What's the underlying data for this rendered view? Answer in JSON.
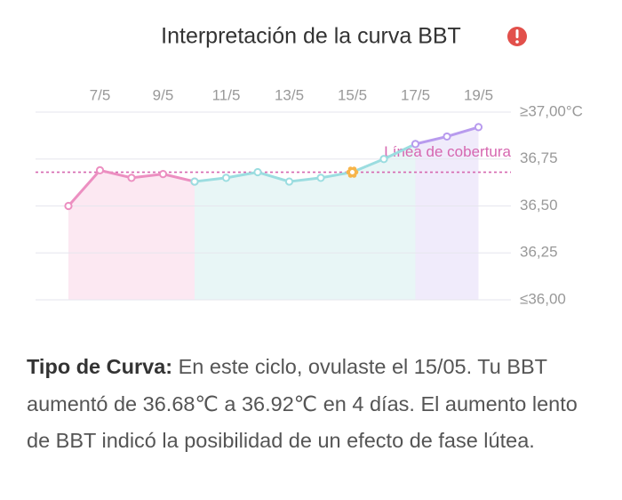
{
  "chart_data": {
    "type": "line",
    "title": "Interpretación de la curva BBT",
    "categories": [
      null,
      "7/5",
      null,
      "9/5",
      null,
      "11/5",
      null,
      "13/5",
      null,
      "15/5",
      null,
      "17/5",
      null,
      "19/5"
    ],
    "series": [
      {
        "color": "#ec8fc1",
        "area_color": "#fce8f2",
        "values": [
          36.5,
          36.69,
          36.65,
          36.67,
          36.63,
          null,
          null,
          null,
          null,
          null,
          null,
          null,
          null,
          null
        ]
      },
      {
        "color": "#9bdde0",
        "area_color": "#e8f6f6",
        "values": [
          null,
          null,
          null,
          null,
          36.63,
          36.65,
          36.68,
          36.63,
          36.65,
          36.68,
          36.75,
          36.83,
          null,
          null
        ]
      },
      {
        "color": "#b89bee",
        "area_color": "#f0ebfb",
        "values": [
          null,
          null,
          null,
          null,
          null,
          null,
          null,
          null,
          null,
          null,
          null,
          36.83,
          36.87,
          36.92
        ]
      },
      {
        "color": "#f7b54a",
        "marker": "star",
        "values": [
          null,
          null,
          null,
          null,
          null,
          null,
          null,
          null,
          null,
          36.68,
          null,
          null,
          null,
          null
        ]
      }
    ],
    "cover_line": {
      "label": "Línea de cobertura",
      "value": 36.68,
      "color": "#d667b0"
    },
    "ylim": [
      36.0,
      37.0
    ],
    "yticks": [
      {
        "value": 37.0,
        "label": "≥37,00°C"
      },
      {
        "value": 36.75,
        "label": "36,75"
      },
      {
        "value": 36.5,
        "label": "36,50"
      },
      {
        "value": 36.25,
        "label": "36,25"
      },
      {
        "value": 36.0,
        "label": "≤36,00"
      }
    ],
    "grid": true
  },
  "description": {
    "label": "Tipo de Curva:",
    "text": "En este ciclo, ovulaste el 15/05. Tu BBT aumentó de 36.68℃ a 36.92℃ en 4 días. El aumento lento de BBT indicó la posibilidad de un efecto de fase lútea."
  }
}
